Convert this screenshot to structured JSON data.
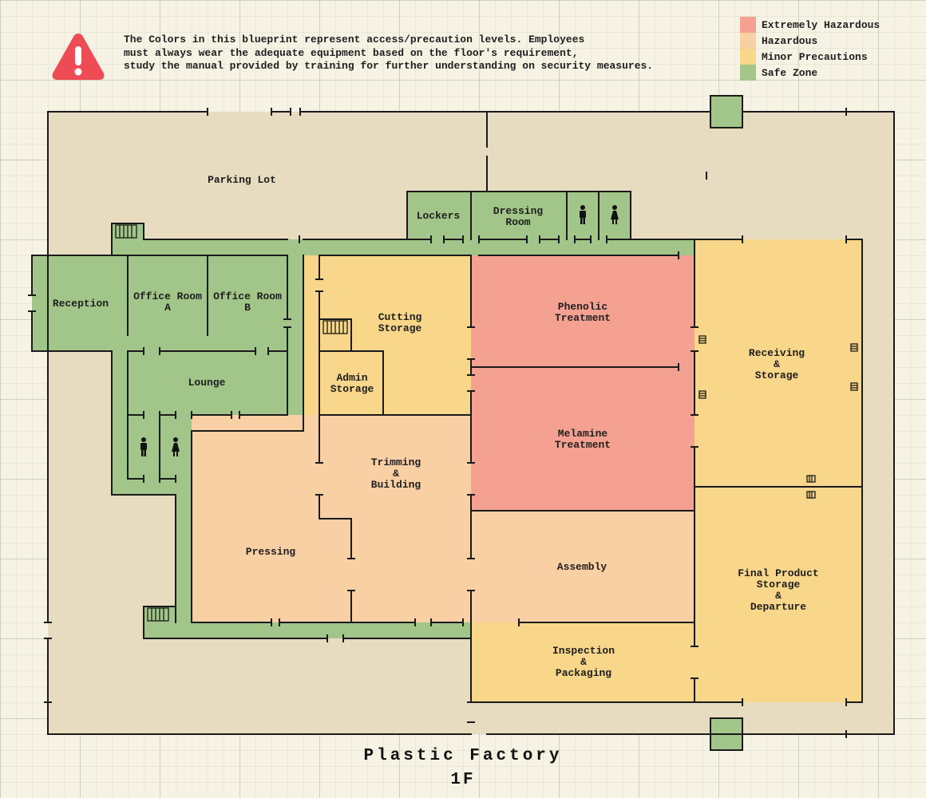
{
  "notice": "The Colors in this blueprint represent access/precaution levels. Employees\nmust always wear the adequate equipment based on the floor's requirement,\nstudy the manual provided by training for further understanding on security measures.",
  "legend": [
    {
      "label": "Extremely Hazardous",
      "color": "#f4a191"
    },
    {
      "label": "Hazardous",
      "color": "#f9cfa4"
    },
    {
      "label": "Minor Precautions",
      "color": "#f8d68a"
    },
    {
      "label": "Safe Zone",
      "color": "#a2c589"
    }
  ],
  "zone_colors": {
    "outdoor": "#e7dcc0",
    "safe": "#a2c589",
    "minor": "#f8d68a",
    "hazard": "#f9cfa4",
    "extreme": "#f4a191",
    "warning_icon": "#ee4b55"
  },
  "rooms": {
    "parking": [
      "Parking Lot"
    ],
    "lockers": [
      "Lockers"
    ],
    "dressing": [
      "Dressing",
      "Room"
    ],
    "reception": [
      "Reception"
    ],
    "office_a": [
      "Office Room",
      "A"
    ],
    "office_b": [
      "Office Room",
      "B"
    ],
    "lounge": [
      "Lounge"
    ],
    "cutting": [
      "Cutting",
      "Storage"
    ],
    "admin": [
      "Admin",
      "Storage"
    ],
    "phenolic": [
      "Phenolic",
      "Treatment"
    ],
    "melamine": [
      "Melamine",
      "Treatment"
    ],
    "receiving": [
      "Receiving",
      "&",
      "Storage"
    ],
    "trimming": [
      "Trimming",
      "&",
      "Building"
    ],
    "pressing": [
      "Pressing"
    ],
    "assembly": [
      "Assembly"
    ],
    "final": [
      "Final Product",
      "Storage",
      "&",
      "Departure"
    ],
    "inspection": [
      "Inspection",
      "&",
      "Packaging"
    ]
  },
  "title": "Plastic Factory",
  "floor": "1F"
}
